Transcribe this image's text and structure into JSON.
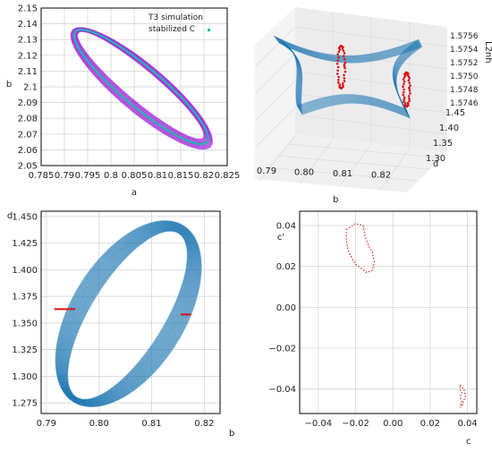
{
  "chart_data": [
    {
      "type": "scatter",
      "panel": "top-left",
      "xlabel": "a",
      "ylabel": "b",
      "xlim": [
        0.785,
        0.825
      ],
      "ylim": [
        2.05,
        2.15
      ],
      "xticks": [
        "0.785",
        "0.79",
        "0.795",
        "0.8",
        "0.805",
        "0.81",
        "0.815",
        "0.82",
        "0.825"
      ],
      "yticks": [
        "2.05",
        "2.06",
        "2.07",
        "2.08",
        "2.09",
        "2.1",
        "2.11",
        "2.12",
        "2.13",
        "2.14",
        "2.15"
      ],
      "grid": true,
      "legend_position": "top-right",
      "series": [
        {
          "name": "T3 simulation",
          "color": "#a020d8",
          "shape": "closed-loop band",
          "center": [
            0.8065,
            2.1
          ],
          "spread": 0.004
        },
        {
          "name": "stabilized C",
          "color": "#20b8b0",
          "shape": "closed loop",
          "center": [
            0.8065,
            2.1
          ]
        }
      ]
    },
    {
      "type": "scatter",
      "panel": "top-right (3D)",
      "xlabel": "b",
      "ylabel": "d",
      "zlabel": "L2nh",
      "xticks": [
        "0.79",
        "0.80",
        "0.81",
        "0.82"
      ],
      "yticks": [
        "1.30",
        "1.35",
        "1.40",
        "1.45"
      ],
      "zticks": [
        "1.5746",
        "1.5748",
        "1.5750",
        "1.5752",
        "1.5754",
        "1.5756"
      ],
      "colors": {
        "surface": "#1f77b4",
        "points": "#dd1111"
      }
    },
    {
      "type": "scatter",
      "panel": "bottom-left",
      "xlabel": "b",
      "ylabel": "d",
      "xlim": [
        0.789,
        0.823
      ],
      "ylim": [
        1.265,
        1.455
      ],
      "xticks": [
        0.79,
        0.8,
        0.81,
        0.82
      ],
      "xtick_labels": [
        "0.79",
        "0.80",
        "0.81",
        "0.82"
      ],
      "yticks": [
        1.275,
        1.3,
        1.325,
        1.35,
        1.375,
        1.4,
        1.425,
        1.45
      ],
      "ytick_labels": [
        "1.275",
        "1.300",
        "1.325",
        "1.350",
        "1.375",
        "1.400",
        "1.425",
        "1.450"
      ],
      "grid": true,
      "series": [
        {
          "color": "#1f77b4",
          "shape": "closed-loop band",
          "center": [
            0.8055,
            1.358
          ],
          "band_from": [
            0.7905,
            1.27,
            0.8205,
            1.445
          ]
        },
        {
          "color": "#dd1111",
          "shape": "segments",
          "segments": [
            [
              [
                0.7915,
                1.363
              ],
              [
                0.7955,
                1.363
              ]
            ],
            [
              [
                0.8155,
                1.358
              ],
              [
                0.8175,
                1.358
              ]
            ]
          ]
        }
      ]
    },
    {
      "type": "scatter",
      "panel": "bottom-right",
      "xlabel": "c",
      "ylabel": "c'",
      "xlim": [
        -0.05,
        0.045
      ],
      "ylim": [
        -0.052,
        0.047
      ],
      "xticks": [
        -0.04,
        -0.02,
        0.0,
        0.02,
        0.04
      ],
      "xtick_labels": [
        "−0.04",
        "−0.02",
        "0.00",
        "0.02",
        "0.04"
      ],
      "yticks": [
        -0.04,
        -0.02,
        0.0,
        0.02,
        0.04
      ],
      "ytick_labels": [
        "−0.04",
        "−0.02",
        "0.00",
        "0.02",
        "0.04"
      ],
      "grid": true,
      "series": [
        {
          "color": "#dd1111",
          "style": "dotted",
          "points": [
            [
              -0.025,
              0.038
            ],
            [
              -0.02,
              0.041
            ],
            [
              -0.016,
              0.04
            ],
            [
              -0.015,
              0.035
            ],
            [
              -0.013,
              0.03
            ],
            [
              -0.011,
              0.027
            ],
            [
              -0.01,
              0.022
            ],
            [
              -0.011,
              0.018
            ],
            [
              -0.014,
              0.017
            ],
            [
              -0.017,
              0.019
            ],
            [
              -0.02,
              0.021
            ],
            [
              -0.022,
              0.024
            ],
            [
              -0.024,
              0.028
            ],
            [
              -0.025,
              0.033
            ],
            [
              -0.025,
              0.038
            ]
          ]
        },
        {
          "color": "#dd1111",
          "style": "dotted",
          "points": [
            [
              0.036,
              -0.038
            ],
            [
              0.038,
              -0.04
            ],
            [
              0.039,
              -0.043
            ],
            [
              0.038,
              -0.046
            ],
            [
              0.037,
              -0.048
            ],
            [
              0.036,
              -0.049
            ],
            [
              0.037,
              -0.046
            ],
            [
              0.036,
              -0.044
            ],
            [
              0.037,
              -0.042
            ],
            [
              0.036,
              -0.04
            ],
            [
              0.036,
              -0.038
            ]
          ]
        }
      ]
    }
  ]
}
